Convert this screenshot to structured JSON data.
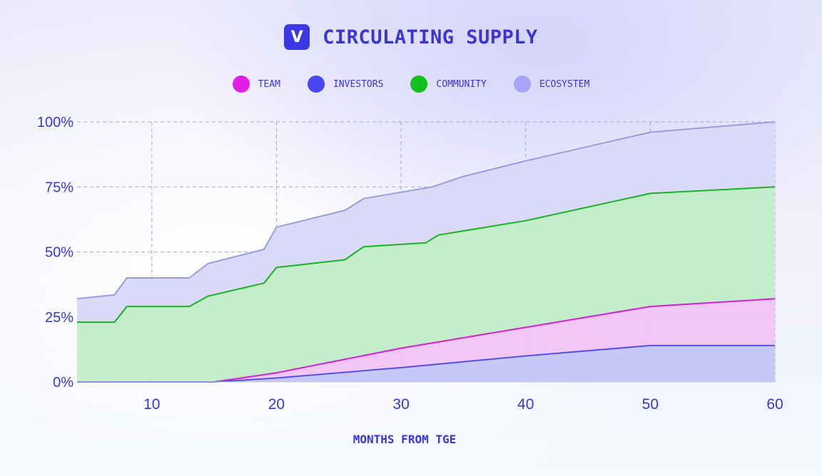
{
  "header": {
    "logo_letter": "V",
    "title": "CIRCULATING SUPPLY"
  },
  "legend": [
    {
      "label": "TEAM",
      "color": "#e21ee6"
    },
    {
      "label": "INVESTORS",
      "color": "#4a47f2"
    },
    {
      "label": "COMMUNITY",
      "color": "#10c21a"
    },
    {
      "label": "ECOSYSTEM",
      "color": "#a7a5f7"
    }
  ],
  "chart_data": {
    "type": "area",
    "title": "CIRCULATING SUPPLY",
    "xlabel": "MONTHS FROM TGE",
    "ylabel": "",
    "xlim": [
      4,
      60
    ],
    "ylim": [
      0,
      100
    ],
    "x_ticks": [
      10,
      20,
      30,
      40,
      50,
      60
    ],
    "y_ticks": [
      0,
      25,
      50,
      75,
      100
    ],
    "y_tick_labels": [
      "0%",
      "25%",
      "50%",
      "75%",
      "100%"
    ],
    "grid": true,
    "legend_position": "top",
    "stacked": true,
    "series": [
      {
        "name": "INVESTORS",
        "color": "#5551e8",
        "fill": "#c3c5f7",
        "points": [
          [
            4,
            0
          ],
          [
            15,
            0
          ],
          [
            20,
            1.5
          ],
          [
            30,
            5.5
          ],
          [
            40,
            10
          ],
          [
            50,
            14
          ],
          [
            60,
            14
          ]
        ]
      },
      {
        "name": "TEAM",
        "color": "#d21fd8",
        "fill": "#f1c4f8",
        "points": [
          [
            4,
            0
          ],
          [
            15,
            0
          ],
          [
            20,
            3.5
          ],
          [
            30,
            13
          ],
          [
            40,
            21
          ],
          [
            50,
            29
          ],
          [
            60,
            32
          ]
        ]
      },
      {
        "name": "COMMUNITY",
        "color": "#16b421",
        "fill": "#c0edc6",
        "points": [
          [
            4,
            23
          ],
          [
            7,
            23
          ],
          [
            8,
            29
          ],
          [
            13,
            29
          ],
          [
            14.5,
            33
          ],
          [
            19,
            38
          ],
          [
            20,
            44
          ],
          [
            25.5,
            47
          ],
          [
            27,
            52
          ],
          [
            32,
            53.5
          ],
          [
            33,
            56.5
          ],
          [
            40,
            62
          ],
          [
            50,
            72.5
          ],
          [
            60,
            75
          ]
        ]
      },
      {
        "name": "ECOSYSTEM",
        "color": "#9c9be0",
        "fill": "#d8d8f8",
        "points": [
          [
            4,
            32
          ],
          [
            7,
            33.5
          ],
          [
            8,
            40
          ],
          [
            13,
            40
          ],
          [
            14.5,
            45.5
          ],
          [
            19,
            51
          ],
          [
            20,
            59.5
          ],
          [
            25.5,
            66
          ],
          [
            27,
            70.5
          ],
          [
            32.5,
            75
          ],
          [
            35,
            79
          ],
          [
            40,
            85
          ],
          [
            50,
            96
          ],
          [
            60,
            100
          ]
        ]
      }
    ]
  }
}
